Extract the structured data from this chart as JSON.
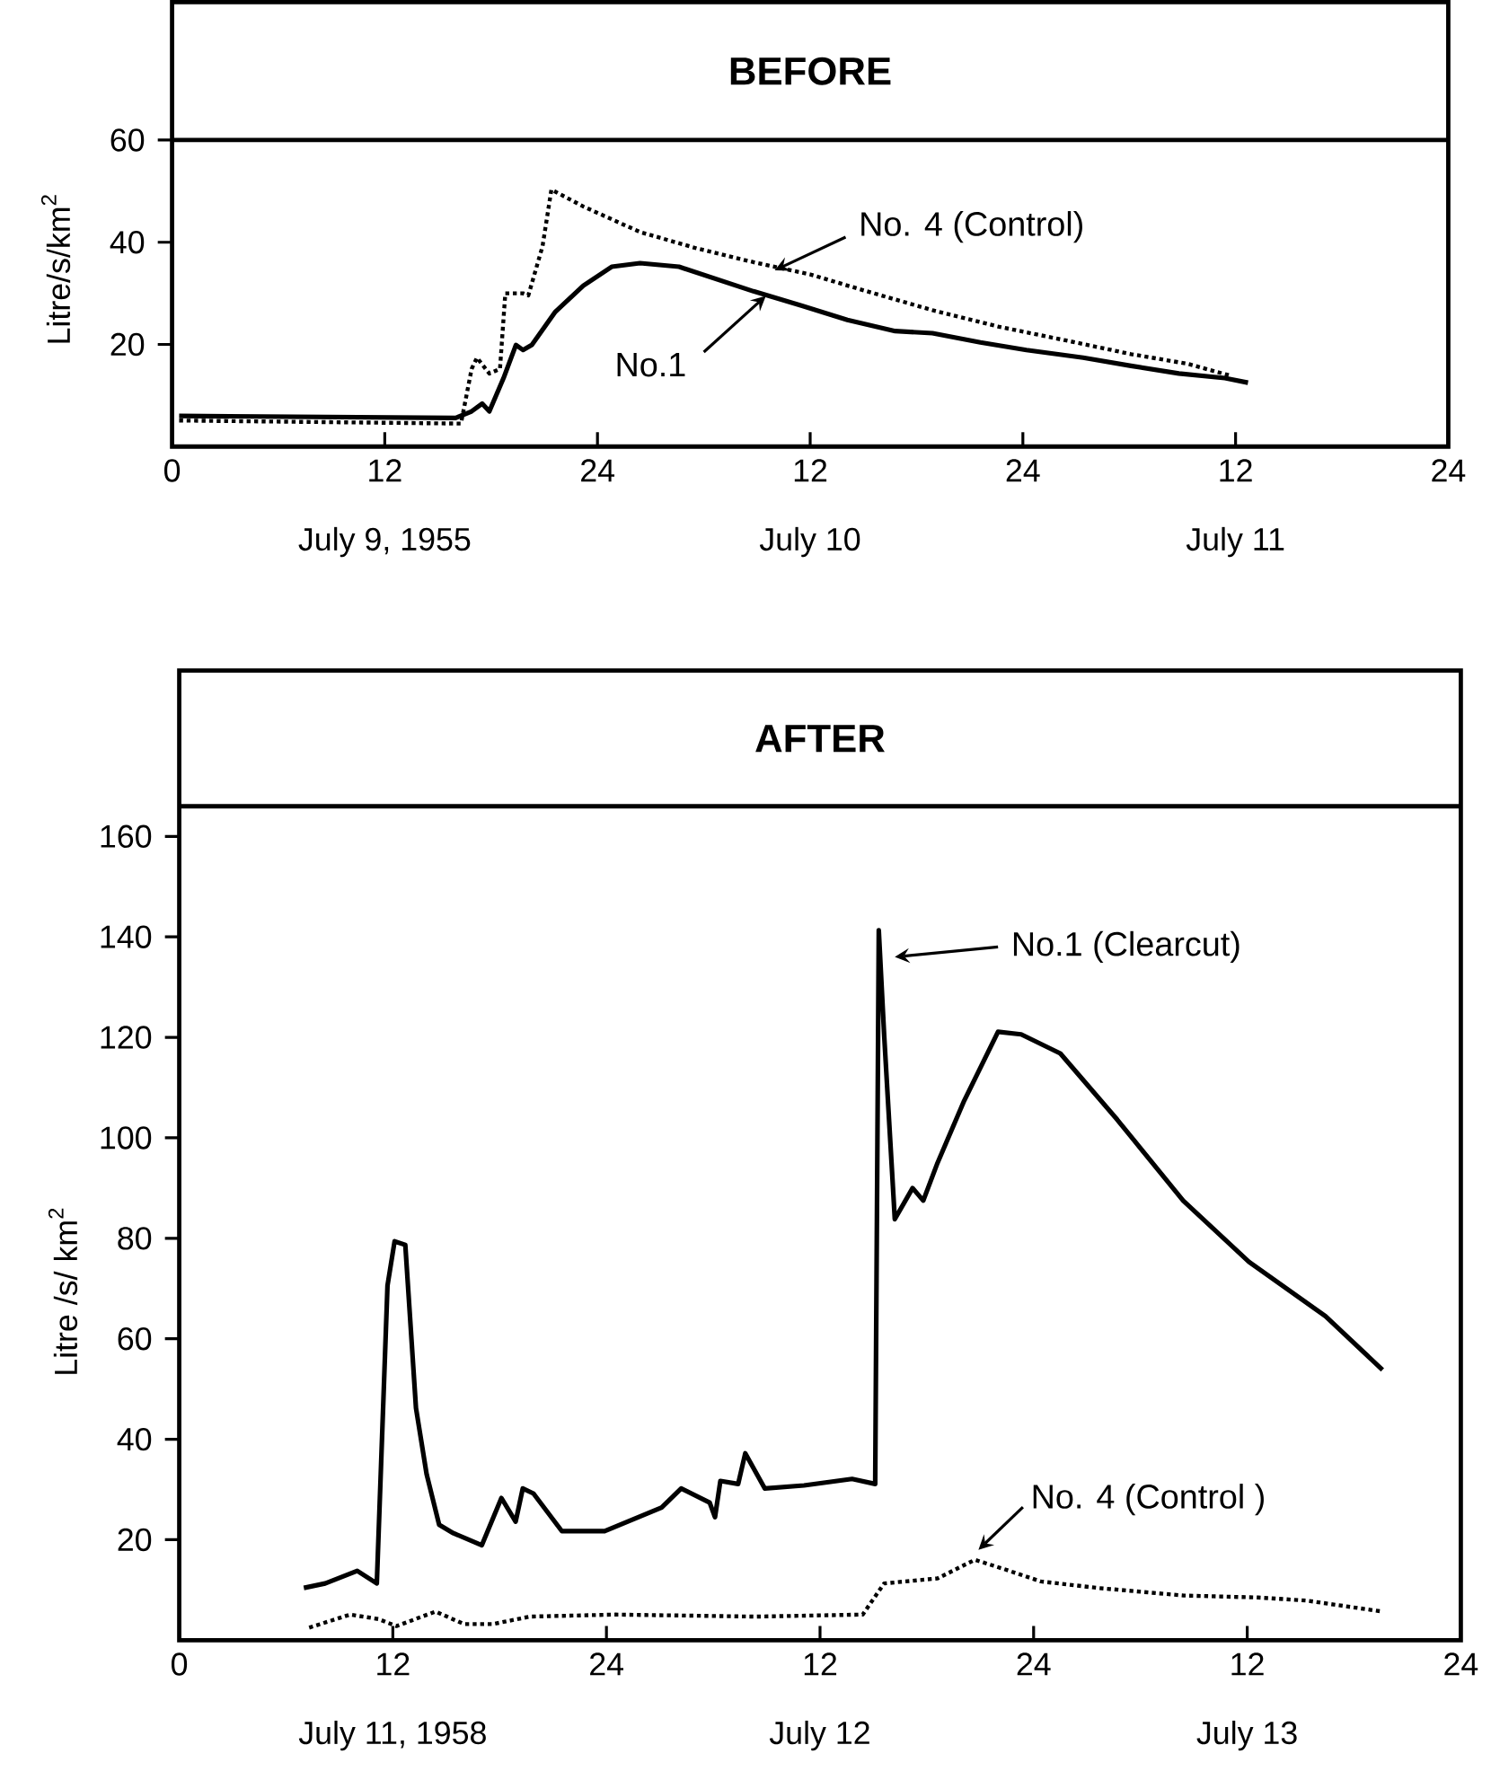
{
  "chart_data": [
    {
      "type": "line",
      "title": "BEFORE",
      "ylabel": "Litre/s/km$^{2}$",
      "xlim": [
        "1955-07-09T00:00",
        "1955-07-12T00:00"
      ],
      "ylim": [
        0,
        87
      ],
      "xticks": [
        {
          "value": "1955-07-09T00:00",
          "label": "0"
        },
        {
          "value": "1955-07-09T12:00",
          "label": "12"
        },
        {
          "value": "1955-07-10T00:00",
          "label": "24"
        },
        {
          "value": "1955-07-10T12:00",
          "label": "12"
        },
        {
          "value": "1955-07-11T00:00",
          "label": "24"
        },
        {
          "value": "1955-07-11T12:00",
          "label": "12"
        },
        {
          "value": "1955-07-12T00:00",
          "label": "24"
        }
      ],
      "yticks": [
        20,
        40,
        60
      ],
      "ref_lines": [
        {
          "axis": "y",
          "value": 60
        }
      ],
      "annotations": [
        "July 9, 1955",
        "July 10",
        "July 11"
      ],
      "series": [
        {
          "name": "No.1",
          "color": "#000000",
          "line_style": "solid",
          "x": [
            "1955-07-09T00:24",
            "1955-07-09T16:00",
            "1955-07-09T16:54",
            "1955-07-09T17:30",
            "1955-07-09T17:54",
            "1955-07-09T18:42",
            "1955-07-09T19:24",
            "1955-07-09T19:48",
            "1955-07-09T20:18",
            "1955-07-09T21:36",
            "1955-07-09T23:12",
            "1955-07-10T00:48",
            "1955-07-10T02:24",
            "1955-07-10T04:36",
            "1955-07-10T06:42",
            "1955-07-10T08:48",
            "1955-07-10T11:30",
            "1955-07-10T14:06",
            "1955-07-10T16:48",
            "1955-07-10T18:54",
            "1955-07-10T21:36",
            "1955-07-11T00:12",
            "1955-07-11T03:24",
            "1955-07-11T06:06",
            "1955-07-11T08:48",
            "1955-07-11T11:24",
            "1955-07-11T12:42"
          ],
          "values": [
            6,
            5.6,
            6.9,
            8.4,
            6.9,
            13.4,
            19.9,
            18.9,
            19.9,
            26.3,
            31.5,
            35.2,
            35.9,
            35.2,
            32.8,
            30.4,
            27.6,
            24.8,
            22.6,
            22.2,
            20.4,
            18.9,
            17.4,
            15.8,
            14.3,
            13.4,
            12.5
          ]
        },
        {
          "name": "No. 4  (Control)",
          "color": "#000000",
          "line_style": "dotted",
          "x": [
            "1955-07-09T00:24",
            "1955-07-09T16:18",
            "1955-07-09T16:54",
            "1955-07-09T17:12",
            "1955-07-09T17:54",
            "1955-07-09T18:30",
            "1955-07-09T18:48",
            "1955-07-09T19:48",
            "1955-07-09T20:06",
            "1955-07-09T20:54",
            "1955-07-09T21:24",
            "1955-07-09T23:12",
            "1955-07-10T02:24",
            "1955-07-10T05:36",
            "1955-07-10T08:48",
            "1955-07-10T12:00",
            "1955-07-10T15:12",
            "1955-07-10T18:54",
            "1955-07-10T22:36",
            "1955-07-11T02:24",
            "1955-07-11T06:06",
            "1955-07-11T09:18",
            "1955-07-11T11:42"
          ],
          "values": [
            5.1,
            4.5,
            15.2,
            17.4,
            14.3,
            15.2,
            30,
            30,
            29.6,
            39.2,
            50.3,
            47,
            42,
            38.8,
            36.1,
            33.7,
            30.4,
            26.7,
            23.5,
            20.8,
            18.1,
            16.2,
            13.9
          ]
        }
      ]
    },
    {
      "type": "line",
      "title": "AFTER",
      "ylabel": "Litre /s/ km$^{2}$",
      "xlim": [
        "1958-07-11T00:00",
        "1958-07-14T00:00"
      ],
      "ylim": [
        0,
        193
      ],
      "xticks": [
        {
          "value": "1958-07-11T00:00",
          "label": "0"
        },
        {
          "value": "1958-07-11T12:00",
          "label": "12"
        },
        {
          "value": "1958-07-12T00:00",
          "label": "24"
        },
        {
          "value": "1958-07-12T12:00",
          "label": "12"
        },
        {
          "value": "1958-07-13T00:00",
          "label": "24"
        },
        {
          "value": "1958-07-13T12:00",
          "label": "12"
        },
        {
          "value": "1958-07-14T00:00",
          "label": "24"
        }
      ],
      "yticks": [
        20,
        40,
        60,
        80,
        100,
        120,
        140,
        160
      ],
      "ref_lines": [
        {
          "axis": "y",
          "value": 166
        }
      ],
      "annotations": [
        "July 11, 1958",
        "July 12",
        "July 13"
      ],
      "series": [
        {
          "name": "No.1  (Clearcut)",
          "color": "#000000",
          "line_style": "solid",
          "x": [
            "1958-07-11T07:00",
            "1958-07-11T08:12",
            "1958-07-11T10:00",
            "1958-07-11T11:06",
            "1958-07-11T11:42",
            "1958-07-11T12:06",
            "1958-07-11T12:42",
            "1958-07-11T13:18",
            "1958-07-11T13:54",
            "1958-07-11T14:36",
            "1958-07-11T15:24",
            "1958-07-11T17:00",
            "1958-07-11T18:06",
            "1958-07-11T18:54",
            "1958-07-11T19:18",
            "1958-07-11T19:54",
            "1958-07-11T21:30",
            "1958-07-11T23:54",
            "1958-07-12T03:06",
            "1958-07-12T04:12",
            "1958-07-12T05:48",
            "1958-07-12T06:06",
            "1958-07-12T06:24",
            "1958-07-12T07:24",
            "1958-07-12T07:48",
            "1958-07-12T08:54",
            "1958-07-12T11:06",
            "1958-07-12T13:48",
            "1958-07-12T15:06",
            "1958-07-12T15:18",
            "1958-07-12T15:36",
            "1958-07-12T16:12",
            "1958-07-12T17:12",
            "1958-07-12T17:48",
            "1958-07-12T18:36",
            "1958-07-12T20:06",
            "1958-07-12T22:00",
            "1958-07-12T23:18",
            "1958-07-13T01:30",
            "1958-07-13T04:42",
            "1958-07-13T08:24",
            "1958-07-13T12:06",
            "1958-07-13T16:24",
            "1958-07-13T19:36"
          ],
          "values": [
            10.4,
            11.3,
            13.8,
            11.3,
            70.6,
            79.4,
            78.7,
            46.2,
            33,
            23,
            21.3,
            18.9,
            28.3,
            23.6,
            30.2,
            29.2,
            21.7,
            21.7,
            26.4,
            30.2,
            27.4,
            24.5,
            31.7,
            31.1,
            37.2,
            30.2,
            30.8,
            32.1,
            31.1,
            141.3,
            120.6,
            83.8,
            90,
            87.5,
            95,
            107.4,
            121.1,
            120.6,
            116.8,
            103.6,
            87.5,
            75.3,
            64.5,
            53.8
          ]
        },
        {
          "name": "No. 4  (Control )",
          "color": "#000000",
          "line_style": "dotted",
          "x": [
            "1958-07-11T07:18",
            "1958-07-11T09:36",
            "1958-07-11T11:12",
            "1958-07-11T12:12",
            "1958-07-11T14:24",
            "1958-07-11T16:00",
            "1958-07-11T17:36",
            "1958-07-11T19:42",
            "1958-07-12T00:30",
            "1958-07-12T08:24",
            "1958-07-12T14:24",
            "1958-07-12T15:36",
            "1958-07-12T18:36",
            "1958-07-12T20:42",
            "1958-07-12T22:18",
            "1958-07-13T00:24",
            "1958-07-13T03:36",
            "1958-07-13T08:24",
            "1958-07-13T12:36",
            "1958-07-13T15:18",
            "1958-07-13T19:36"
          ],
          "values": [
            2.5,
            5.1,
            4.2,
            2.8,
            5.7,
            3.2,
            3.2,
            4.7,
            5.1,
            4.7,
            5.1,
            11.3,
            12.3,
            16,
            14.2,
            11.7,
            10.4,
            8.9,
            8.5,
            7.9,
            5.7
          ]
        }
      ]
    }
  ]
}
